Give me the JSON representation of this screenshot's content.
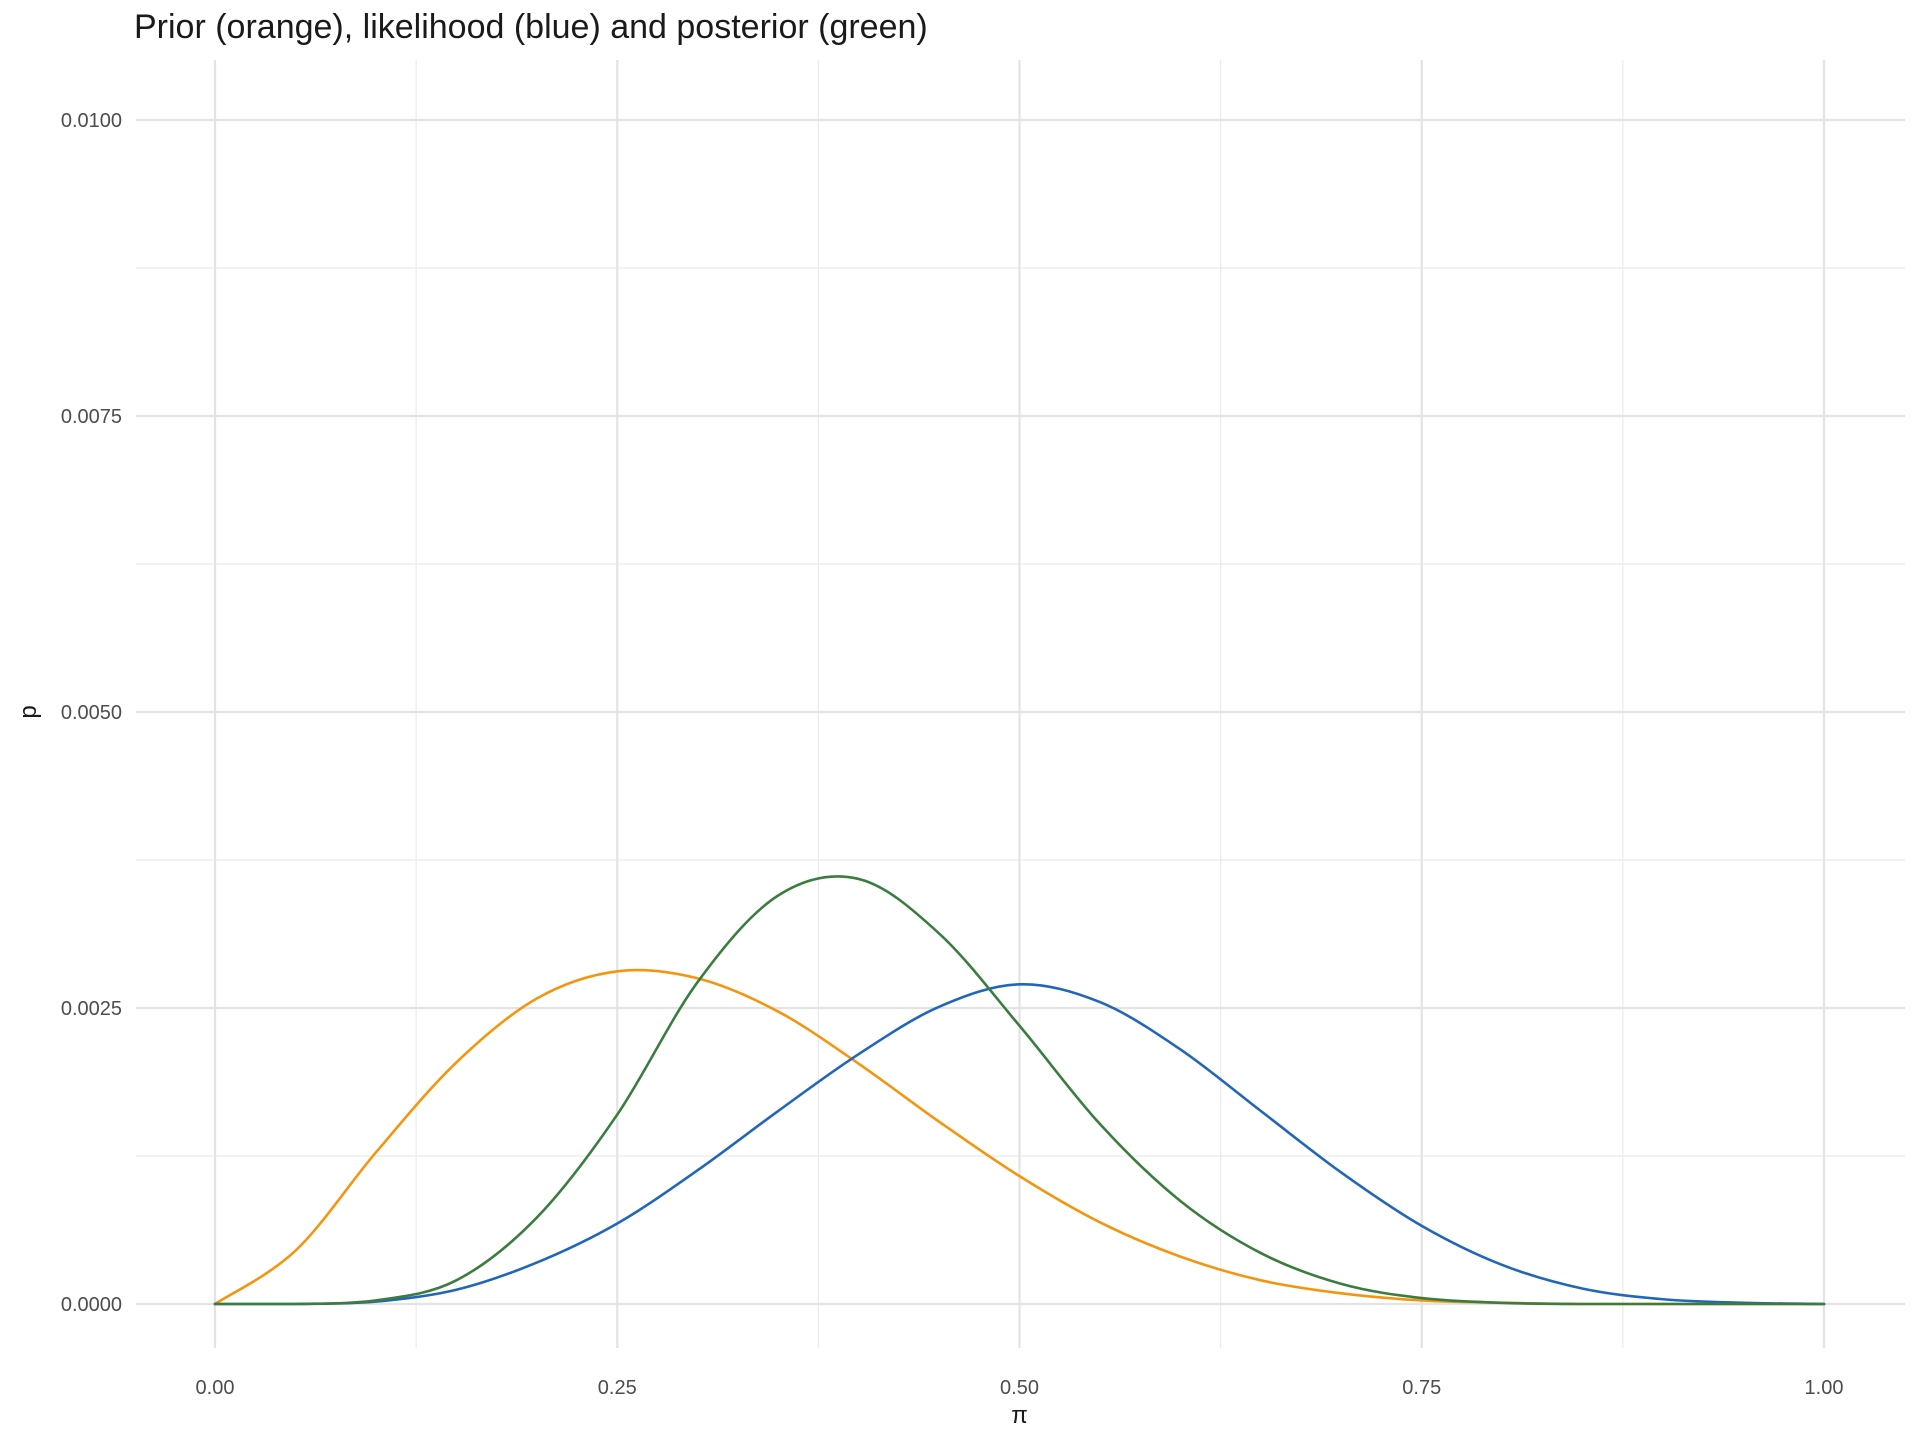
{
  "chart_data": {
    "type": "line",
    "title": "Prior (orange), likelihood (blue) and posterior (green)",
    "xlabel": "π",
    "ylabel": "p",
    "xlim": [
      0,
      1
    ],
    "ylim": [
      0,
      0.01
    ],
    "grid": true,
    "legend": "none",
    "x_ticks": [
      {
        "value": 0,
        "label": "0.00"
      },
      {
        "value": 0.25,
        "label": "0.25"
      },
      {
        "value": 0.5,
        "label": "0.50"
      },
      {
        "value": 0.75,
        "label": "0.75"
      },
      {
        "value": 1,
        "label": "1.00"
      }
    ],
    "y_ticks": [
      {
        "value": 0,
        "label": "0.0000"
      },
      {
        "value": 0.0025,
        "label": "0.0025"
      },
      {
        "value": 0.005,
        "label": "0.0050"
      },
      {
        "value": 0.0075,
        "label": "0.0075"
      },
      {
        "value": 0.01,
        "label": "0.0100"
      }
    ],
    "x": [
      0,
      0.05,
      0.1,
      0.15,
      0.2,
      0.25,
      0.3,
      0.35,
      0.4,
      0.45,
      0.5,
      0.55,
      0.6,
      0.65,
      0.7,
      0.75,
      0.8,
      0.85,
      0.9,
      0.95,
      1
    ],
    "series": [
      {
        "color": "#f5950f",
        "values": [
          0,
          0.00045,
          0.00128,
          0.00204,
          0.00258,
          0.00281,
          0.00275,
          0.00247,
          0.00203,
          0.00154,
          0.00108,
          0.00069,
          0.0004,
          0.0002,
          9e-05,
          3e-05,
          1e-05,
          0,
          0,
          0,
          0
        ]
      },
      {
        "color": "#2166b8",
        "values": [
          0,
          0,
          2e-05,
          0.00012,
          0.00035,
          0.00068,
          0.00113,
          0.00163,
          0.00211,
          0.00251,
          0.0027,
          0.00255,
          0.00215,
          0.00163,
          0.00111,
          0.00066,
          0.00033,
          0.00013,
          4e-05,
          1e-05,
          0
        ]
      },
      {
        "color": "#3a7d3f",
        "values": [
          0,
          0,
          3e-05,
          0.0002,
          0.00073,
          0.0016,
          0.00272,
          0.00345,
          0.00359,
          0.00313,
          0.00235,
          0.00152,
          0.00087,
          0.00043,
          0.00017,
          5e-05,
          1e-05,
          0,
          0,
          0,
          0
        ]
      }
    ]
  }
}
